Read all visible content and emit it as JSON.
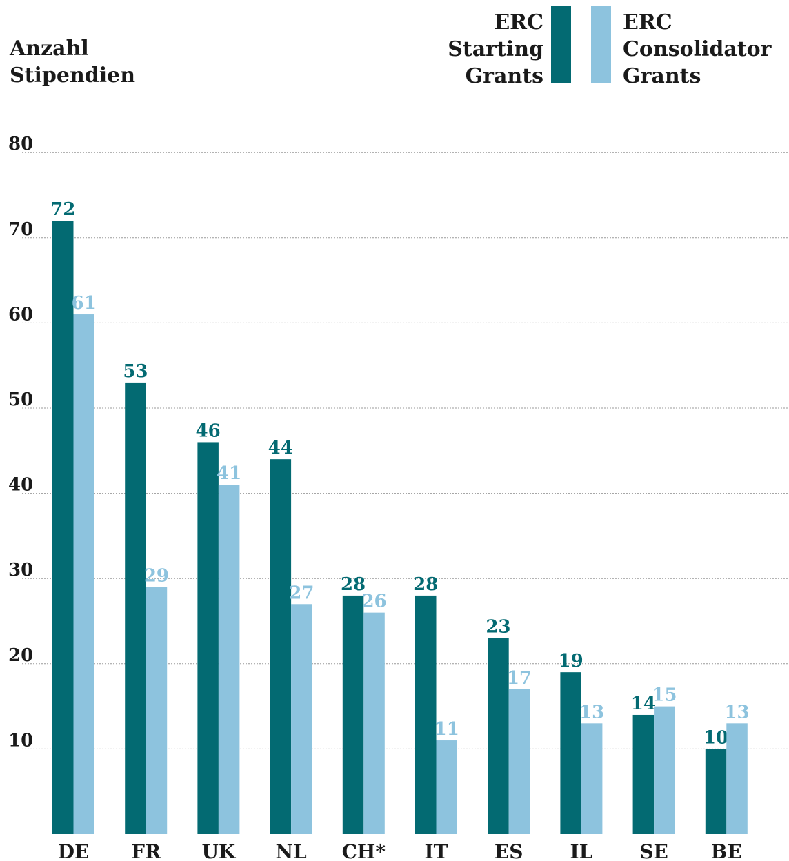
{
  "chart_data": {
    "type": "bar",
    "ylabel": [
      "Anzahl",
      "Stipendien"
    ],
    "categories": [
      "DE",
      "FR",
      "UK",
      "NL",
      "CH*",
      "IT",
      "ES",
      "IL",
      "SE",
      "BE"
    ],
    "series": [
      {
        "name": [
          "ERC",
          "Starting",
          "Grants"
        ],
        "color": "#036a72",
        "values": [
          72,
          53,
          46,
          44,
          28,
          28,
          23,
          19,
          14,
          10
        ]
      },
      {
        "name": [
          "ERC",
          "Consolidator",
          "Grants"
        ],
        "color": "#8dc3de",
        "values": [
          61,
          29,
          41,
          27,
          26,
          11,
          17,
          13,
          15,
          13
        ]
      }
    ],
    "yticks": [
      10,
      20,
      30,
      40,
      50,
      60,
      70,
      80
    ],
    "ylim": [
      0,
      80
    ],
    "grid": true,
    "legend_position": "top-right"
  }
}
